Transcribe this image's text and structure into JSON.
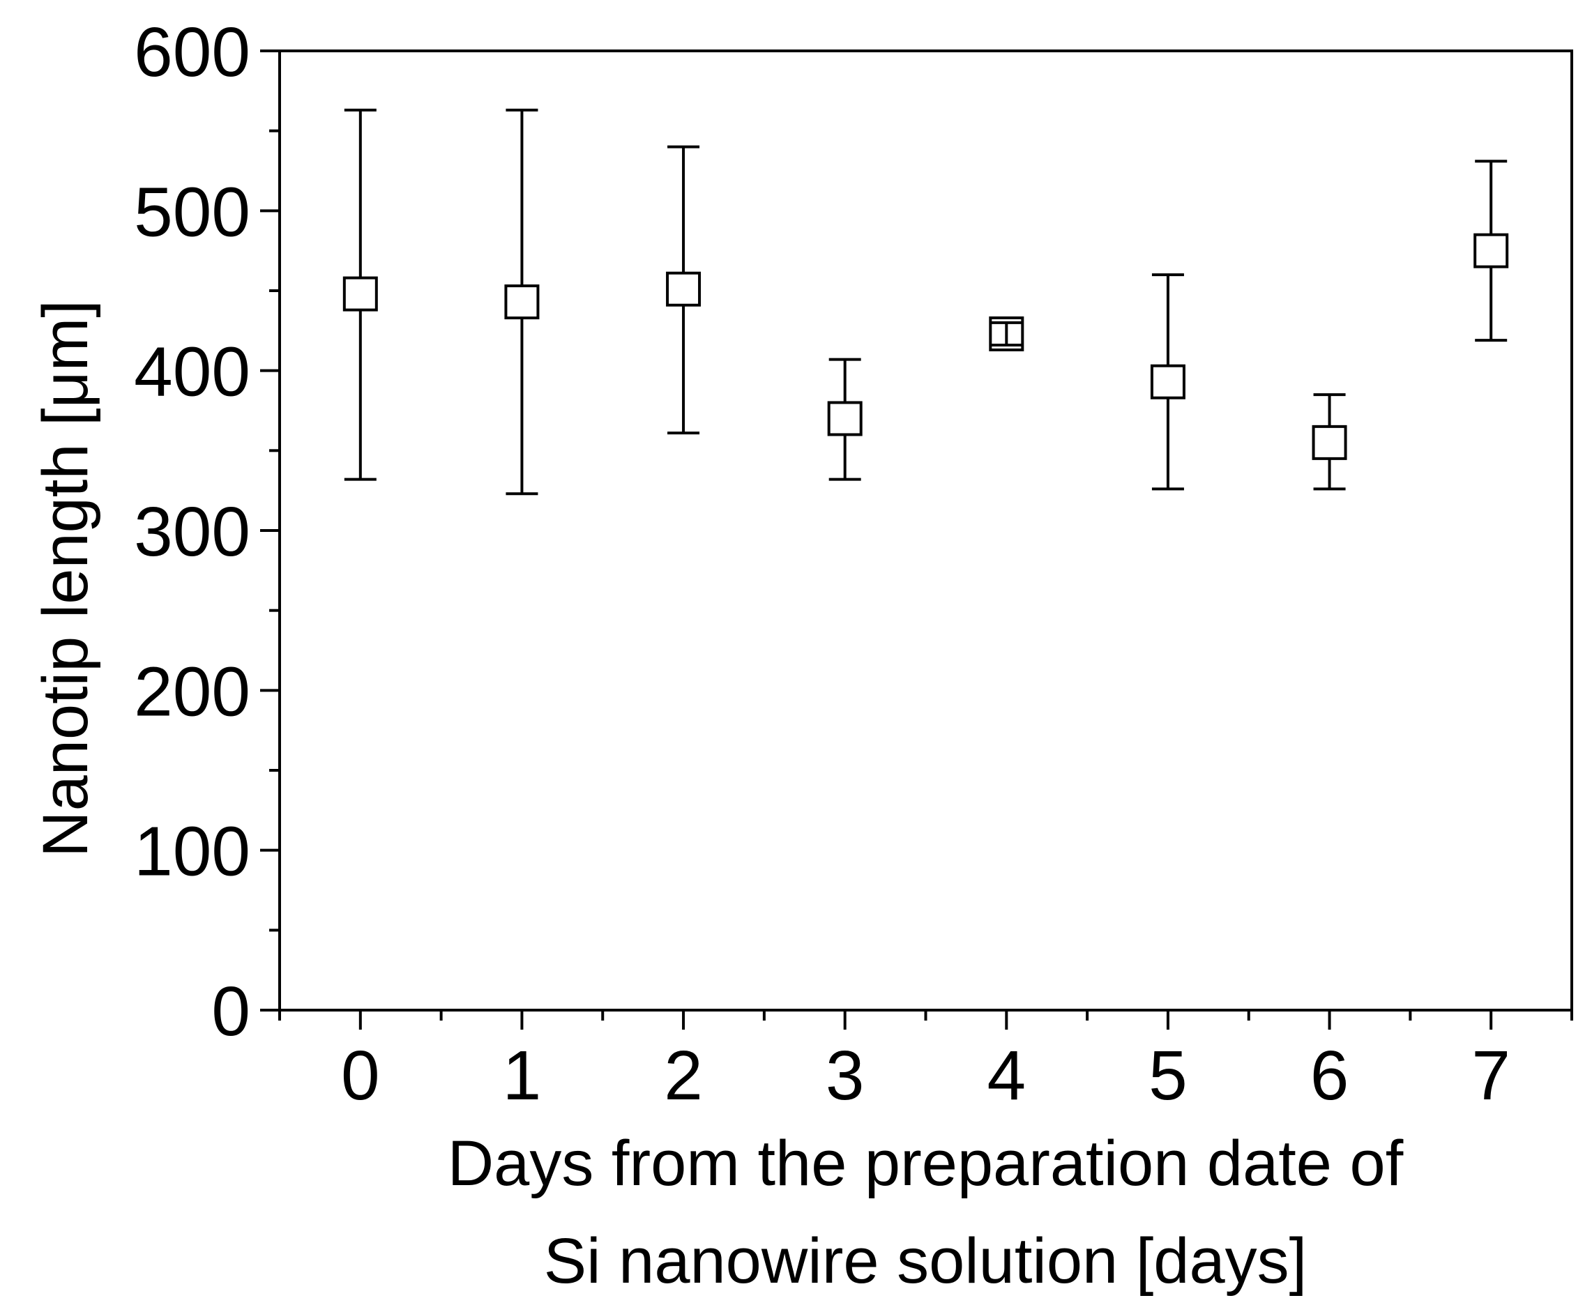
{
  "chart_data": {
    "type": "scatter",
    "xlabel_line1": "Days from the preparation date of",
    "xlabel_line2": "Si nanowire solution [days]",
    "ylabel": "Nanotip length [μm]",
    "xlim": [
      -0.5,
      7.5
    ],
    "ylim": [
      0,
      600
    ],
    "x_ticks": [
      0,
      1,
      2,
      3,
      4,
      5,
      6,
      7
    ],
    "y_ticks": [
      0,
      100,
      200,
      300,
      400,
      500,
      600
    ],
    "grid": false,
    "legend": "none",
    "marker": "open-square",
    "series": [
      {
        "x": [
          0,
          1,
          2,
          3,
          4,
          5,
          6,
          7
        ],
        "y": [
          448,
          443,
          451,
          370,
          423,
          393,
          355,
          475
        ],
        "error_low": [
          332,
          323,
          361,
          332,
          416,
          326,
          326,
          419
        ],
        "error_high": [
          563,
          563,
          540,
          407,
          430,
          460,
          385,
          531
        ]
      }
    ],
    "colors": {
      "line": "#000000",
      "marker_fill": "#ffffff",
      "background": "#ffffff"
    }
  }
}
